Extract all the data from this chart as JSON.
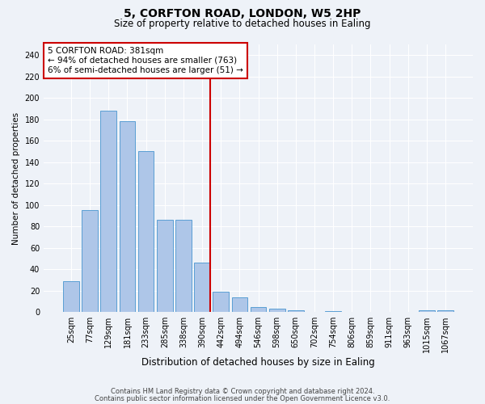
{
  "title": "5, CORFTON ROAD, LONDON, W5 2HP",
  "subtitle": "Size of property relative to detached houses in Ealing",
  "xlabel": "Distribution of detached houses by size in Ealing",
  "ylabel": "Number of detached properties",
  "categories": [
    "25sqm",
    "77sqm",
    "129sqm",
    "181sqm",
    "233sqm",
    "285sqm",
    "338sqm",
    "390sqm",
    "442sqm",
    "494sqm",
    "546sqm",
    "598sqm",
    "650sqm",
    "702sqm",
    "754sqm",
    "806sqm",
    "859sqm",
    "911sqm",
    "963sqm",
    "1015sqm",
    "1067sqm"
  ],
  "values": [
    29,
    95,
    188,
    178,
    150,
    86,
    86,
    46,
    19,
    14,
    5,
    3,
    2,
    0,
    1,
    0,
    0,
    0,
    0,
    2,
    2
  ],
  "bar_color": "#aec6e8",
  "bar_edge_color": "#5a9fd4",
  "vline_x_index": 7,
  "vline_color": "#cc0000",
  "annotation_text": "5 CORFTON ROAD: 381sqm\n← 94% of detached houses are smaller (763)\n6% of semi-detached houses are larger (51) →",
  "annotation_box_color": "#ffffff",
  "annotation_box_edge_color": "#cc0000",
  "ylim": [
    0,
    250
  ],
  "yticks": [
    0,
    20,
    40,
    60,
    80,
    100,
    120,
    140,
    160,
    180,
    200,
    220,
    240
  ],
  "footer_line1": "Contains HM Land Registry data © Crown copyright and database right 2024.",
  "footer_line2": "Contains public sector information licensed under the Open Government Licence v3.0.",
  "background_color": "#eef2f8",
  "grid_color": "#ffffff",
  "title_fontsize": 10,
  "subtitle_fontsize": 8.5,
  "ylabel_fontsize": 7.5,
  "xlabel_fontsize": 8.5,
  "tick_fontsize": 7,
  "annotation_fontsize": 7.5,
  "footer_fontsize": 6
}
